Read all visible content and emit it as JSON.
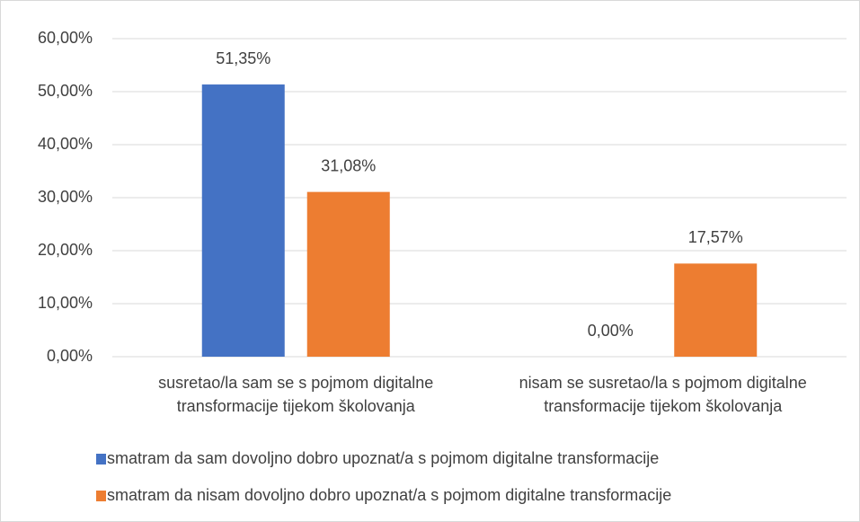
{
  "chart_data": {
    "type": "bar",
    "categories": [
      "susretao/la sam se s pojmom digitalne transformacije tijekom školovanja",
      "nisam se susretao/la s pojmom digitalne transformacije tijekom školovanja"
    ],
    "series": [
      {
        "name": "smatram da sam dovoljno dobro upoznat/a s pojmom digitalne transformacije",
        "color": "#4472c4",
        "values": [
          51.35,
          0
        ],
        "value_labels": [
          "51,35%",
          "0,00%"
        ]
      },
      {
        "name": "smatram da nisam dovoljno dobro upoznat/a s pojmom digitalne transformacije",
        "color": "#ed7d31",
        "values": [
          31.08,
          17.57
        ],
        "value_labels": [
          "31,08%",
          "17,57%"
        ]
      }
    ],
    "ylim": [
      0,
      60
    ],
    "yticks": [
      {
        "value": 0,
        "label": "0,00%"
      },
      {
        "value": 10,
        "label": "10,00%"
      },
      {
        "value": 20,
        "label": "20,00%"
      },
      {
        "value": 30,
        "label": "30,00%"
      },
      {
        "value": 40,
        "label": "40,00%"
      },
      {
        "value": 50,
        "label": "50,00%"
      },
      {
        "value": 60,
        "label": "60,00%"
      }
    ],
    "grid": true,
    "legend": "bottom"
  }
}
